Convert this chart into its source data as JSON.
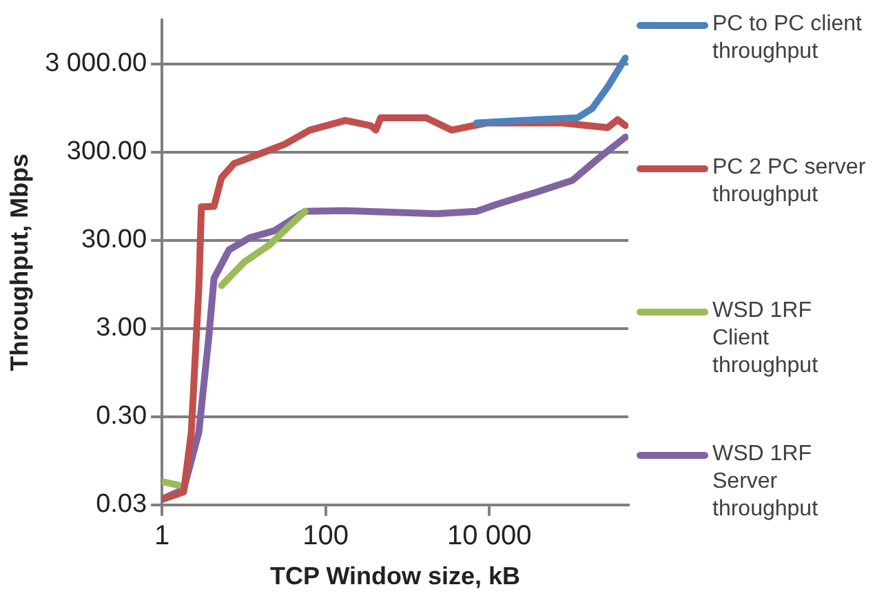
{
  "chart_data": {
    "type": "line",
    "xlabel": "TCP Window size, kB",
    "ylabel": "Throughput, Mbps",
    "log": "xy",
    "grid": "y",
    "legend": "right",
    "marker": "none",
    "line_style": "solid",
    "xlim": [
      1,
      500000
    ],
    "xticks": [
      1,
      100,
      {
        "value": 10000,
        "label": "10 000"
      }
    ],
    "ylim": [
      0.03,
      9500
    ],
    "yticks": [
      {
        "value": 0.03,
        "label": "0.03"
      },
      {
        "value": 0.3,
        "label": "0.30"
      },
      {
        "value": 3,
        "label": "3.00"
      },
      {
        "value": 30,
        "label": "30.00"
      },
      {
        "value": 300,
        "label": "300.00"
      },
      {
        "value": 3000,
        "label": "3 000.00"
      }
    ],
    "series": [
      {
        "name": "PC to PC client throughput",
        "color": "#4f81bd",
        "x": [
          7000,
          38000,
          120000,
          181000,
          280000,
          460000
        ],
        "values": [
          643,
          700,
          737,
          940,
          1650,
          3500
        ]
      },
      {
        "name": "PC 2 PC server throughput",
        "color": "#c0504d",
        "x": [
          1.04,
          1.84,
          2.28,
          2.82,
          3.03,
          4.32,
          5.34,
          7.6,
          15.5,
          31.6,
          64,
          174,
          354,
          410,
          470,
          1690,
          3460,
          9270,
          78000,
          280000,
          370000,
          460000
        ],
        "values": [
          0.035,
          0.042,
          0.2,
          8.6,
          72,
          73,
          154,
          223,
          286,
          369,
          534,
          687,
          600,
          534,
          737,
          737,
          534,
          643,
          643,
          570,
          700,
          600
        ]
      },
      {
        "name": "WSD 1RF Client throughput",
        "color": "#9bbb59",
        "x": [
          1.01,
          1.6,
          2.5,
          5.34,
          10.1,
          20.6,
          42,
          56
        ],
        "values": [
          0.055,
          0.05,
          null,
          9.2,
          17,
          26.7,
          50,
          64
        ]
      },
      {
        "name": "WSD 1RF Server throughput",
        "color": "#8064a2",
        "x": [
          1.01,
          1.84,
          2.82,
          3.75,
          4.32,
          6.6,
          11.7,
          23.7,
          56,
          174,
          2250,
          7000,
          12400,
          38000,
          104000,
          215000,
          460000
        ],
        "values": [
          0.035,
          0.045,
          0.2,
          2.5,
          11.1,
          23.4,
          32,
          38.6,
          64,
          65,
          60,
          64,
          77,
          106,
          144,
          255,
          444
        ]
      }
    ]
  }
}
